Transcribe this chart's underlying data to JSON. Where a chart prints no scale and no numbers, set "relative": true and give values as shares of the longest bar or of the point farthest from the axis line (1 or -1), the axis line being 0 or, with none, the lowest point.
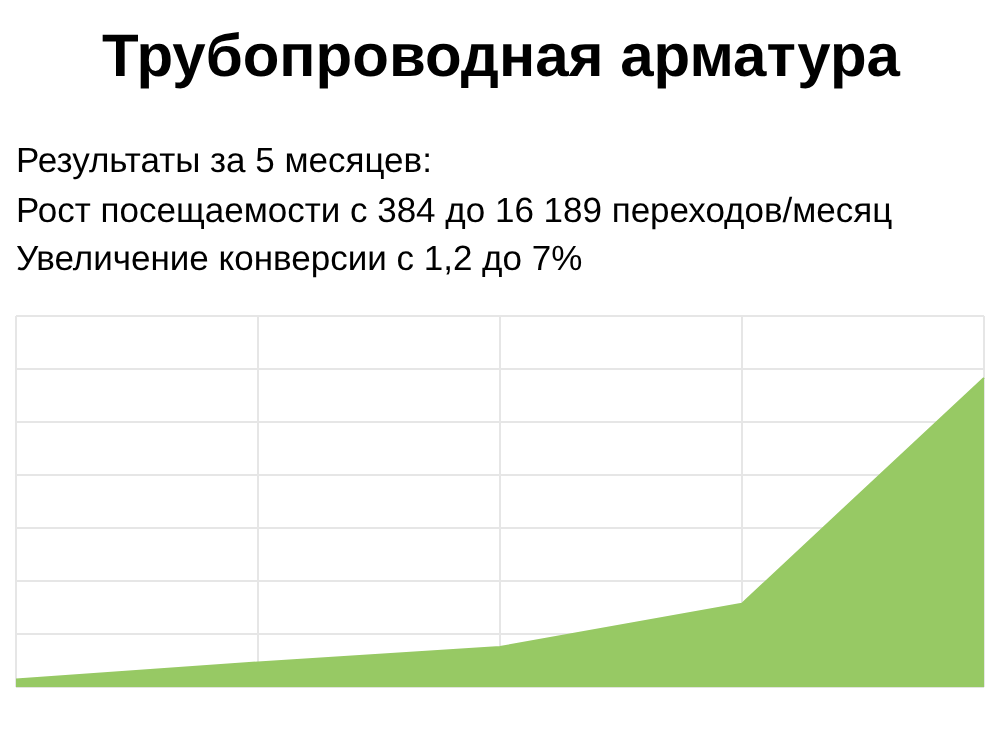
{
  "chart_data": {
    "type": "area",
    "title": "Трубопроводная арматура",
    "annotations": [
      "Результаты за 5 месяцев:",
      "Рост посещаемости с 384 до 16 189 переходов/месяц",
      "Увеличение конверсии с 1,2 до 7%"
    ],
    "categories": [
      null,
      null,
      null,
      null,
      null
    ],
    "relative": true,
    "series": [
      {
        "color": "#97c964",
        "values": [
          0.025,
          0.08,
          0.13,
          0.27,
          1
        ]
      }
    ],
    "grid": true,
    "legend": false,
    "marker": "none"
  }
}
